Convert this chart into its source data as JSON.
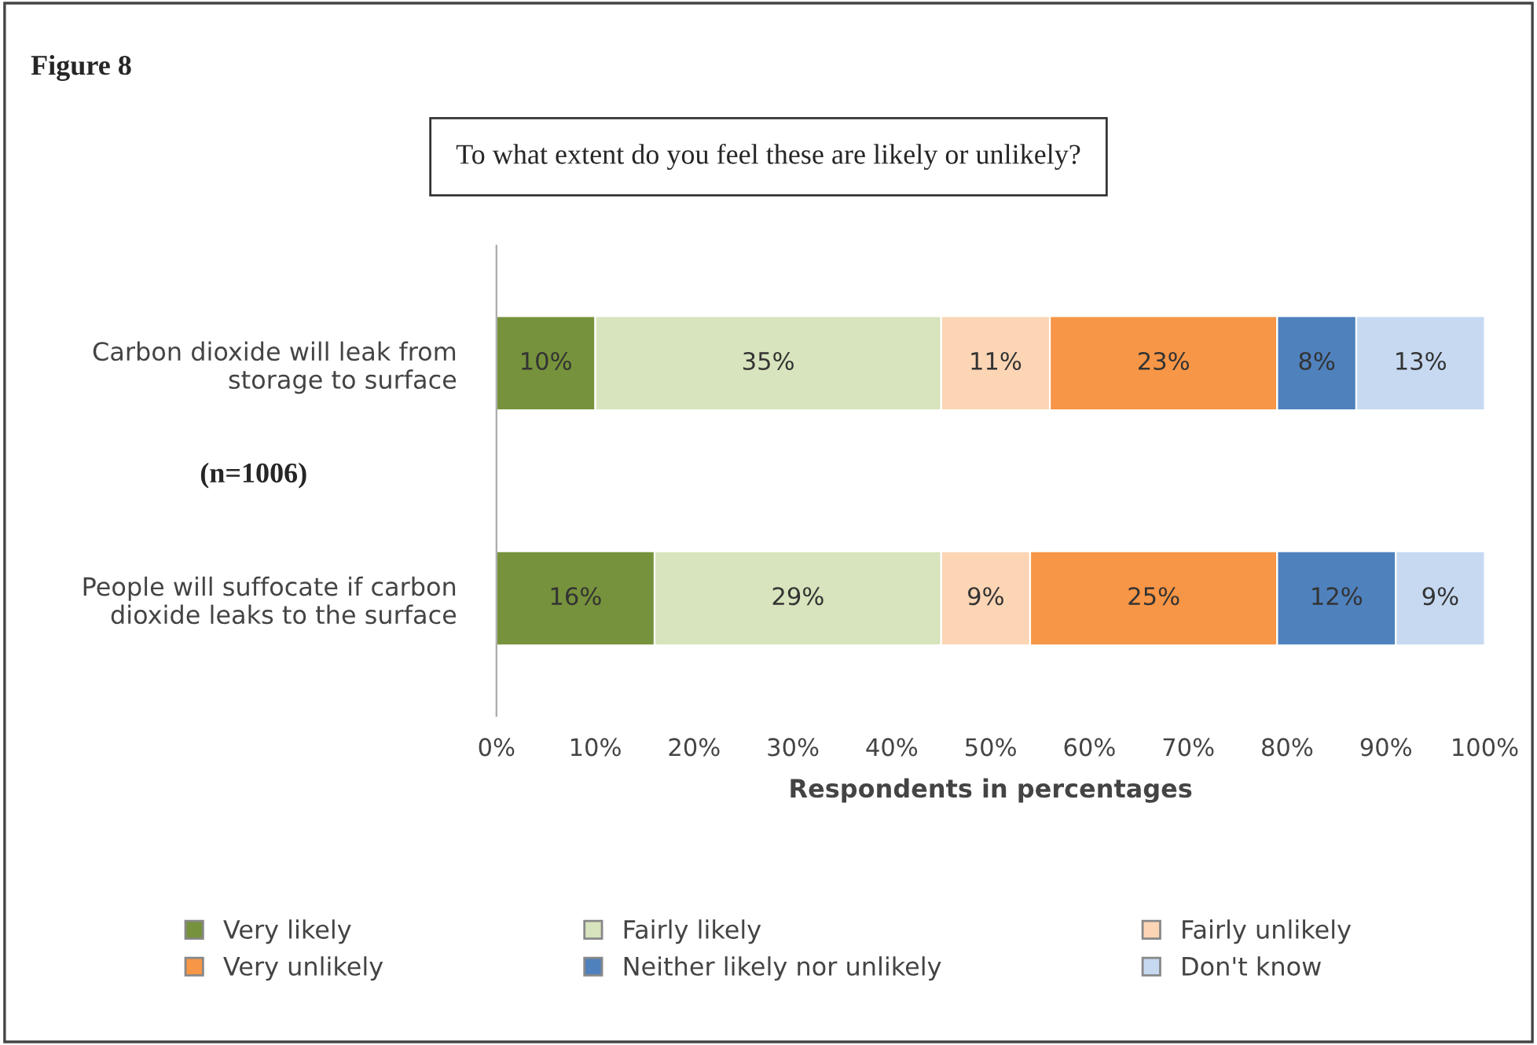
{
  "chart_data": {
    "type": "bar",
    "orientation": "horizontal",
    "stacked": true,
    "title": "To what extent do you feel these are likely or unlikely?",
    "xlabel": "Respondents in percentages",
    "annotations": [
      "Figure 8",
      "(n=1006)"
    ],
    "categories": [
      "Carbon dioxide will leak from\nstorage to surface",
      "People will suffocate if carbon\ndioxide leaks to the surface"
    ],
    "series": [
      {
        "name": "Very likely",
        "color": "#76923c",
        "values": [
          10,
          16
        ],
        "value_labels": [
          "10%",
          "16%"
        ]
      },
      {
        "name": "Fairly likely",
        "color": "#d7e4bd",
        "values": [
          35,
          29
        ],
        "value_labels": [
          "35%",
          "29%"
        ]
      },
      {
        "name": "Fairly unlikely",
        "color": "#fcd5b5",
        "values": [
          11,
          9
        ],
        "value_labels": [
          "11%",
          "9%"
        ]
      },
      {
        "name": "Very unlikely",
        "color": "#f79646",
        "values": [
          23,
          25
        ],
        "value_labels": [
          "23%",
          "25%"
        ]
      },
      {
        "name": "Neither likely nor unlikely",
        "color": "#4f81bd",
        "values": [
          8,
          12
        ],
        "value_labels": [
          "8%",
          "12%"
        ]
      },
      {
        "name": "Don't know",
        "color": "#c6d9f1",
        "values": [
          13,
          9
        ],
        "value_labels": [
          "13%",
          "9%"
        ]
      }
    ],
    "xlim": [
      0,
      100
    ],
    "xticks": [
      {
        "value": 0,
        "label": "0%"
      },
      {
        "value": 10,
        "label": "10%"
      },
      {
        "value": 20,
        "label": "20%"
      },
      {
        "value": 30,
        "label": "30%"
      },
      {
        "value": 40,
        "label": "40%"
      },
      {
        "value": 50,
        "label": "50%"
      },
      {
        "value": 60,
        "label": "60%"
      },
      {
        "value": 70,
        "label": "70%"
      },
      {
        "value": 80,
        "label": "80%"
      },
      {
        "value": 90,
        "label": "90%"
      },
      {
        "value": 100,
        "label": "100%"
      }
    ],
    "grid": false,
    "legend": "bottom"
  }
}
